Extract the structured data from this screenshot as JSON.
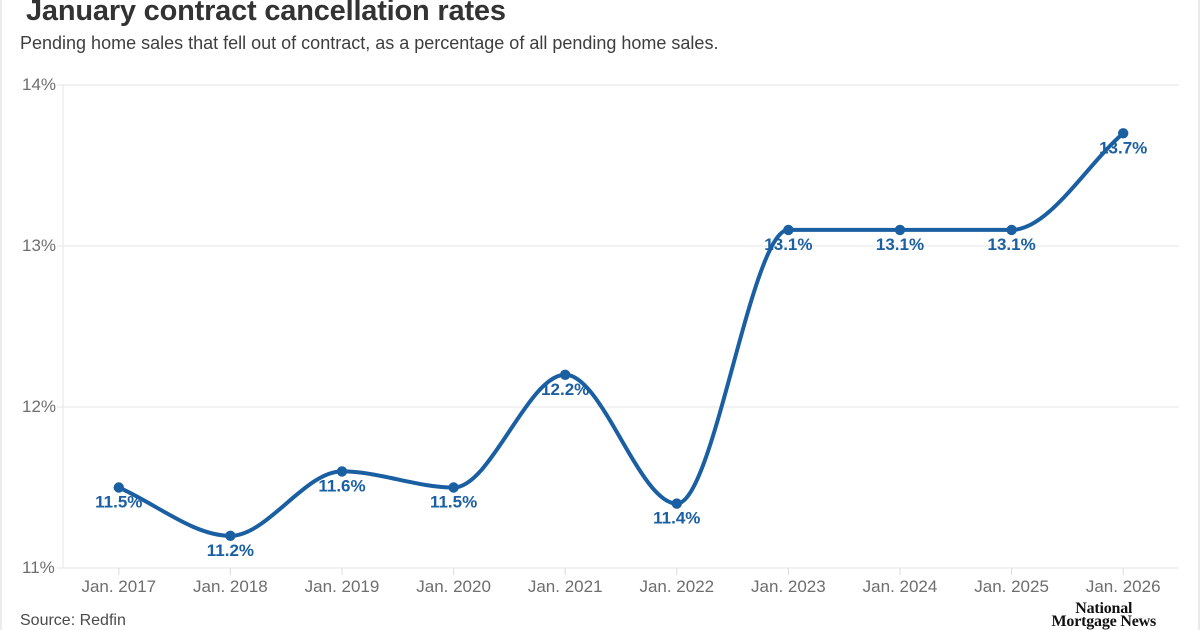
{
  "header": {
    "title": "January contract cancellation rates",
    "subtitle": "Pending home sales that fell out of contract, as a percentage of all pending home sales."
  },
  "chart_data": {
    "type": "line",
    "title": "January contract cancellation rates",
    "subtitle": "Pending home sales that fell out of contract, as a percentage of all pending home sales.",
    "categories": [
      "Jan. 2017",
      "Jan. 2018",
      "Jan. 2019",
      "Jan. 2020",
      "Jan. 2021",
      "Jan. 2022",
      "Jan. 2023",
      "Jan. 2024",
      "Jan. 2025",
      "Jan. 2026"
    ],
    "series": [
      {
        "name": "Cancellation rate",
        "values": [
          11.5,
          11.2,
          11.6,
          11.5,
          12.2,
          11.4,
          13.1,
          13.1,
          13.1,
          13.7
        ],
        "value_labels": [
          "11.5%",
          "11.2%",
          "11.6%",
          "11.5%",
          "12.2%",
          "11.4%",
          "13.1%",
          "13.1%",
          "13.1%",
          "13.7%"
        ]
      }
    ],
    "xlabel": "",
    "ylabel": "",
    "ylim": [
      11,
      14
    ],
    "y_ticks": [
      {
        "value": 11,
        "label": "11%"
      },
      {
        "value": 12,
        "label": "12%"
      },
      {
        "value": 13,
        "label": "13%"
      },
      {
        "value": 14,
        "label": "14%"
      }
    ],
    "grid": "horizontal",
    "legend": "none",
    "curve": "monotone",
    "colors": {
      "line": "#1b5fa3",
      "point": "#1b5fa3",
      "point_label": "#1b5fa3",
      "gridline": "#e4e4e4",
      "axis_line": "#e4e4e4",
      "tick_mark": "#dcdcdc",
      "axis_text": "#6e6e6e"
    }
  },
  "footer": {
    "source": "Source: Redfin",
    "logo_line1": "National",
    "logo_line2": "Mortgage News"
  }
}
